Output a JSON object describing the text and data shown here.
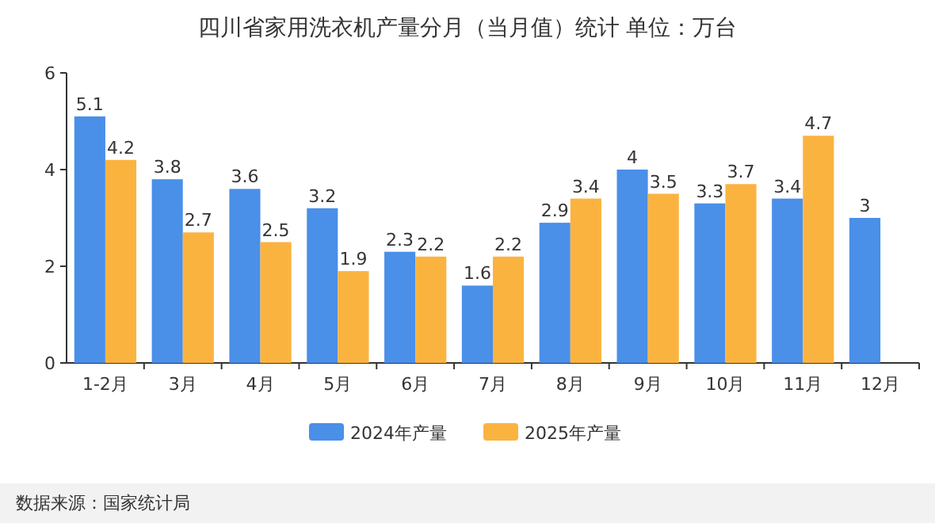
{
  "chart_data": {
    "type": "bar",
    "title": "四川省家用洗衣机产量分月（当月值）统计  单位：万台",
    "categories": [
      "1-2月",
      "3月",
      "4月",
      "5月",
      "6月",
      "7月",
      "8月",
      "9月",
      "10月",
      "11月",
      "12月"
    ],
    "series": [
      {
        "name": "2024年产量",
        "color": "#4a8fe8",
        "values": [
          5.1,
          3.8,
          3.6,
          3.2,
          2.3,
          1.6,
          2.9,
          4,
          3.3,
          3.4,
          3
        ]
      },
      {
        "name": "2025年产量",
        "color": "#fbb340",
        "values": [
          4.2,
          2.7,
          2.5,
          1.9,
          2.2,
          2.2,
          3.4,
          3.5,
          3.7,
          4.7,
          null
        ]
      }
    ],
    "ylim": [
      0,
      6
    ],
    "yticks": [
      0,
      2,
      4,
      6
    ],
    "data_labels": true,
    "legend": "bottom",
    "grid": false,
    "annotations": [
      "数据来源：国家统计局"
    ]
  }
}
